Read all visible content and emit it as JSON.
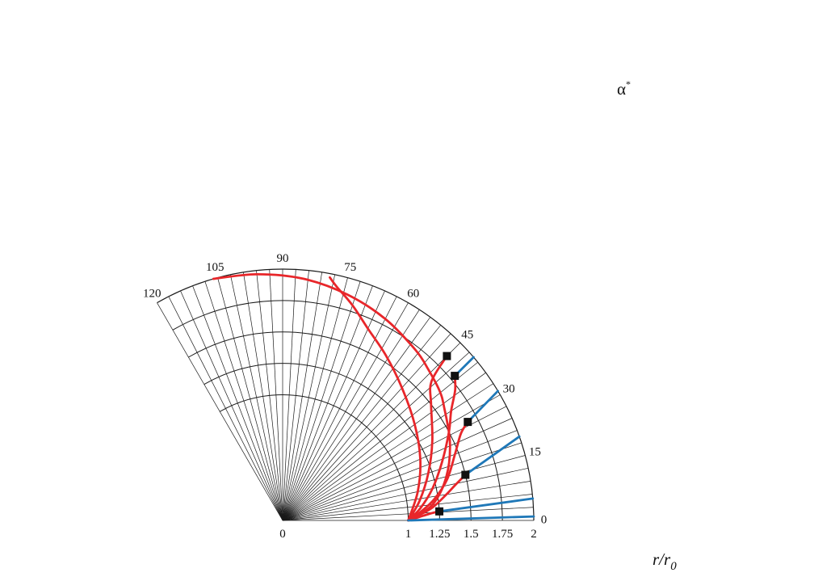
{
  "chart_data": {
    "type": "line",
    "coordinate_system": "polar",
    "title": "",
    "xlabel": "r/r0",
    "xlabel_main": "r/r",
    "xlabel_sub": "0",
    "angle_label": "α",
    "angle_label_sup": "*",
    "angle_range_deg": [
      0,
      120
    ],
    "radius_range": [
      0,
      2
    ],
    "radial_ticks": [
      {
        "value": 0,
        "label": "0"
      },
      {
        "value": 1,
        "label": "1"
      },
      {
        "value": 1.25,
        "label": "1.25"
      },
      {
        "value": 1.5,
        "label": "1.5"
      },
      {
        "value": 1.75,
        "label": "1.75"
      },
      {
        "value": 2,
        "label": "2"
      }
    ],
    "angle_ticks": [
      {
        "value": 0,
        "label": "0"
      },
      {
        "value": 15,
        "label": "15"
      },
      {
        "value": 30,
        "label": "30"
      },
      {
        "value": 45,
        "label": "45"
      },
      {
        "value": 60,
        "label": "60"
      },
      {
        "value": 75,
        "label": "75"
      },
      {
        "value": 90,
        "label": "90"
      },
      {
        "value": 105,
        "label": "105"
      },
      {
        "value": 120,
        "label": "120"
      }
    ],
    "radial_gridlines_step_deg": 3,
    "circle_gridlines": [
      1,
      1.25,
      1.5,
      1.75,
      2
    ],
    "grid": true,
    "colors": {
      "red": "#e8262a",
      "blue": "#1f78b8",
      "grid": "#1a1a1a",
      "marker": "#111111"
    },
    "series": [
      {
        "color": "red",
        "points": [
          [
            1,
            0
          ],
          [
            1.2,
            6
          ],
          [
            1.35,
            15
          ],
          [
            1.47,
            25
          ],
          [
            1.57,
            35
          ],
          [
            1.62,
            39.5
          ],
          [
            1.67,
            46
          ],
          [
            1.72,
            52
          ],
          [
            1.8,
            63
          ],
          [
            1.87,
            74
          ],
          [
            1.93,
            85
          ],
          [
            1.97,
            96
          ],
          [
            2,
            106
          ]
        ]
      },
      {
        "color": "red",
        "points": [
          [
            1,
            0
          ],
          [
            1.1,
            12
          ],
          [
            1.2,
            24
          ],
          [
            1.3,
            36
          ],
          [
            1.42,
            48
          ],
          [
            1.55,
            58
          ],
          [
            1.67,
            66
          ],
          [
            1.8,
            72
          ],
          [
            1.91,
            77
          ],
          [
            1.97,
            79
          ]
        ]
      },
      {
        "color": "red",
        "points": [
          [
            1,
            0
          ],
          [
            1.1,
            8
          ],
          [
            1.22,
            18
          ],
          [
            1.35,
            28
          ],
          [
            1.5,
            38
          ],
          [
            1.62,
            43
          ],
          [
            1.85,
            45
          ]
        ]
      },
      {
        "color": "red",
        "points": [
          [
            1,
            0
          ],
          [
            1.1,
            5
          ],
          [
            1.22,
            12
          ],
          [
            1.35,
            20
          ],
          [
            1.5,
            28
          ],
          [
            1.6,
            33
          ],
          [
            1.72,
            37
          ],
          [
            1.79,
            40
          ]
        ]
      },
      {
        "color": "red",
        "points": [
          [
            1,
            0
          ],
          [
            1.1,
            3.5
          ],
          [
            1.22,
            8
          ],
          [
            1.35,
            14
          ],
          [
            1.47,
            21
          ],
          [
            1.58,
            26
          ],
          [
            1.67,
            28
          ]
        ]
      },
      {
        "color": "red",
        "points": [
          [
            1,
            0
          ],
          [
            1.08,
            2
          ],
          [
            1.2,
            5
          ],
          [
            1.32,
            9
          ],
          [
            1.4,
            11.5
          ],
          [
            1.5,
            14
          ]
        ]
      },
      {
        "color": "red",
        "points": [
          [
            1,
            0
          ],
          [
            1.05,
            0.8
          ],
          [
            1.12,
            1.9
          ],
          [
            1.18,
            2.7
          ],
          [
            1.25,
            3.3
          ]
        ]
      },
      {
        "color": "blue",
        "points": [
          [
            1.79,
            40
          ],
          [
            2,
            40.5
          ]
        ]
      },
      {
        "color": "blue",
        "points": [
          [
            1.67,
            28
          ],
          [
            2,
            31
          ]
        ]
      },
      {
        "color": "blue",
        "points": [
          [
            1.5,
            14
          ],
          [
            2,
            19.5
          ]
        ]
      },
      {
        "color": "blue",
        "points": [
          [
            1.25,
            3.3
          ],
          [
            2,
            5
          ]
        ]
      },
      {
        "color": "blue",
        "points": [
          [
            1,
            0
          ],
          [
            2,
            0.9
          ]
        ]
      }
    ],
    "markers": [
      [
        1.85,
        45
      ],
      [
        1.79,
        40
      ],
      [
        1.67,
        28
      ],
      [
        1.5,
        14
      ],
      [
        1.25,
        3.3
      ]
    ]
  }
}
